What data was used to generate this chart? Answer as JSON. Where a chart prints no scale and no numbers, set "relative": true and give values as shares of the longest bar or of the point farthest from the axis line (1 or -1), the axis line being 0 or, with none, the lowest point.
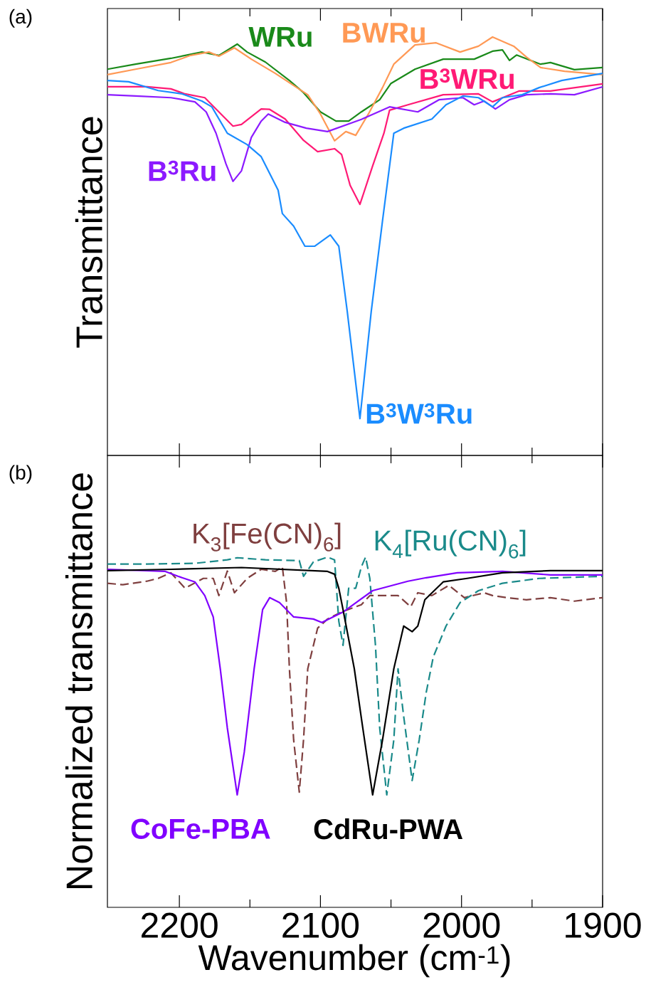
{
  "chart_data": [
    {
      "type": "line",
      "title": "(a)",
      "ylabel": "Transmittance",
      "relative": true,
      "tick_labels": false,
      "marker": "none",
      "xlim": [
        2251,
        1900
      ],
      "xticks": [
        2200,
        {
          "value": 2150,
          "label": null
        },
        2100,
        {
          "value": 2050,
          "label": null
        },
        2000,
        {
          "value": 1950,
          "label": null
        },
        1900
      ],
      "series": [
        {
          "name": "WRu",
          "color": "#1a8a1a",
          "x": [
            2251,
            2231,
            2206,
            2184,
            2172,
            2159,
            2152,
            2139,
            2122,
            2112,
            2100,
            2089,
            2080,
            2071,
            2058,
            2050,
            2033,
            2013,
            1991,
            1978,
            1971,
            1966,
            1961,
            1944,
            1937,
            1920,
            1900
          ],
          "values": [
            0.923,
            0.935,
            0.949,
            0.964,
            0.956,
            0.983,
            0.964,
            0.94,
            0.896,
            0.867,
            0.821,
            0.799,
            0.799,
            0.821,
            0.85,
            0.889,
            0.923,
            0.947,
            0.947,
            0.966,
            0.969,
            0.944,
            0.957,
            0.935,
            0.939,
            0.922,
            0.927
          ]
        },
        {
          "name": "BWRu",
          "color": "#ff9955",
          "x": [
            2251,
            2231,
            2206,
            2192,
            2179,
            2172,
            2161,
            2149,
            2132,
            2119,
            2109,
            2100,
            2090,
            2082,
            2075,
            2066,
            2056,
            2048,
            2033,
            2018,
            2001,
            1988,
            1978,
            1963,
            1954,
            1944,
            1927,
            1900
          ],
          "values": [
            0.91,
            0.923,
            0.939,
            0.956,
            0.964,
            0.954,
            0.974,
            0.947,
            0.913,
            0.884,
            0.862,
            0.816,
            0.752,
            0.774,
            0.765,
            0.816,
            0.879,
            0.935,
            0.981,
            0.986,
            0.964,
            0.978,
            1.0,
            0.978,
            0.952,
            0.927,
            0.918,
            0.91
          ]
        },
        {
          "name": "B$^{3}$WRu",
          "color": "#ff1a75",
          "x": [
            2251,
            2223,
            2206,
            2196,
            2182,
            2172,
            2162,
            2156,
            2142,
            2136,
            2125,
            2112,
            2102,
            2090,
            2085,
            2079,
            2072,
            2063,
            2055,
            2051,
            2038,
            2013,
            1988,
            1978,
            1959,
            1937,
            1900
          ],
          "values": [
            0.881,
            0.881,
            0.876,
            0.864,
            0.855,
            0.821,
            0.787,
            0.791,
            0.828,
            0.827,
            0.804,
            0.753,
            0.726,
            0.733,
            0.719,
            0.646,
            0.6,
            0.692,
            0.77,
            0.825,
            0.838,
            0.862,
            0.864,
            0.845,
            0.871,
            0.871,
            0.888
          ]
        },
        {
          "name": "B$^{3}$Ru",
          "color": "#8c1aff",
          "x": [
            2251,
            2231,
            2206,
            2189,
            2181,
            2174,
            2167,
            2162,
            2156,
            2149,
            2142,
            2137,
            2125,
            2110,
            2095,
            2071,
            2051,
            2031,
            2016,
            1999,
            1991,
            1984,
            1976,
            1966,
            1954,
            1937,
            1920,
            1900
          ],
          "values": [
            0.862,
            0.859,
            0.855,
            0.845,
            0.821,
            0.77,
            0.697,
            0.655,
            0.68,
            0.76,
            0.799,
            0.816,
            0.796,
            0.782,
            0.774,
            0.803,
            0.833,
            0.821,
            0.85,
            0.855,
            0.838,
            0.847,
            0.828,
            0.85,
            0.862,
            0.864,
            0.862,
            0.881
          ]
        },
        {
          "name": "B$^{3}$W$^{3}$Ru",
          "color": "#1a8cff",
          "x": [
            2251,
            2236,
            2215,
            2198,
            2184,
            2177,
            2166,
            2152,
            2142,
            2130,
            2127,
            2119,
            2111,
            2104,
            2093,
            2087,
            2081,
            2072,
            2064,
            2056,
            2048,
            2041,
            2021,
            2011,
            1999,
            1988,
            1978,
            1971,
            1957,
            1945,
            1929,
            1900
          ],
          "values": [
            0.896,
            0.893,
            0.872,
            0.864,
            0.847,
            0.833,
            0.77,
            0.743,
            0.714,
            0.634,
            0.578,
            0.548,
            0.5,
            0.5,
            0.527,
            0.5,
            0.344,
            0.088,
            0.344,
            0.561,
            0.77,
            0.782,
            0.804,
            0.838,
            0.859,
            0.855,
            0.833,
            0.855,
            0.862,
            0.879,
            0.896,
            0.913
          ]
        }
      ]
    },
    {
      "type": "line",
      "title": "(b)",
      "ylabel": "Normalized transmittance",
      "xlabel": "Wavenumber (cm$^{-1}$)",
      "relative": true,
      "tick_labels": "x",
      "marker": "none",
      "xlim": [
        2251,
        1900
      ],
      "xticks": [
        2200,
        {
          "value": 2150,
          "label": null
        },
        2100,
        {
          "value": 2050,
          "label": null
        },
        2000,
        {
          "value": 1950,
          "label": null
        },
        1900
      ],
      "series": [
        {
          "name": "K$_{3}$[Fe(CN)$_{6}$]",
          "color": "#7f3f3f",
          "line_style": "dashed",
          "x": [
            2251,
            2240,
            2223,
            2215,
            2206,
            2196,
            2183,
            2176,
            2172,
            2166,
            2161,
            2152,
            2142,
            2132,
            2127,
            2124,
            2122,
            2119,
            2115,
            2112,
            2109,
            2102,
            2095,
            2085,
            2071,
            2065,
            2055,
            2045,
            2036,
            2031,
            2021,
            2009,
            1998,
            1984,
            1978,
            1968,
            1954,
            1937,
            1920,
            1900
          ],
          "values": [
            0.925,
            0.921,
            0.931,
            0.939,
            0.955,
            0.911,
            0.939,
            0.939,
            0.89,
            0.96,
            0.898,
            0.939,
            0.965,
            0.959,
            0.972,
            0.87,
            0.681,
            0.478,
            0.329,
            0.478,
            0.681,
            0.797,
            0.823,
            0.843,
            0.864,
            0.89,
            0.89,
            0.89,
            0.858,
            0.898,
            0.89,
            0.919,
            0.884,
            0.898,
            0.89,
            0.884,
            0.878,
            0.884,
            0.874,
            0.884
          ]
        },
        {
          "name": "K$_{4}$[Ru(CN)$_{6}$]",
          "color": "#1a8a8a",
          "line_style": "dashed",
          "x": [
            2251,
            2223,
            2189,
            2166,
            2159,
            2139,
            2115,
            2112,
            2105,
            2095,
            2090,
            2087,
            2084,
            2080,
            2075,
            2071,
            2068,
            2065,
            2061,
            2058,
            2053,
            2048,
            2045,
            2041,
            2035,
            2030,
            2025,
            2020,
            2011,
            2001,
            1988,
            1971,
            1945,
            1900
          ],
          "values": [
            0.98,
            0.98,
            0.982,
            0.992,
            0.998,
            0.992,
            0.99,
            0.945,
            0.986,
            1.0,
            0.992,
            0.817,
            0.748,
            0.911,
            0.911,
            0.972,
            1.0,
            0.939,
            0.748,
            0.512,
            0.321,
            0.478,
            0.681,
            0.545,
            0.362,
            0.478,
            0.614,
            0.715,
            0.803,
            0.87,
            0.904,
            0.925,
            0.939,
            0.945
          ]
        },
        {
          "name": "CoFe-PBA",
          "color": "#8000ff",
          "x": [
            2251,
            2210,
            2201,
            2189,
            2182,
            2176,
            2171,
            2166,
            2159,
            2154,
            2147,
            2141,
            2136,
            2129,
            2119,
            2105,
            2099,
            2084,
            2063,
            2038,
            2025,
            2003,
            1971,
            1937,
            1900
          ],
          "values": [
            0.965,
            0.959,
            0.945,
            0.929,
            0.89,
            0.829,
            0.681,
            0.512,
            0.321,
            0.443,
            0.681,
            0.85,
            0.884,
            0.87,
            0.829,
            0.823,
            0.813,
            0.843,
            0.904,
            0.931,
            0.941,
            0.955,
            0.959,
            0.949,
            0.949
          ]
        },
        {
          "name": "CdRu-PWA",
          "color": "#000000",
          "x": [
            2251,
            2206,
            2156,
            2095,
            2090,
            2087,
            2084,
            2076,
            2070,
            2063,
            2056,
            2048,
            2041,
            2035,
            2031,
            2026,
            2013,
            1996,
            1971,
            1937,
            1900
          ],
          "values": [
            0.961,
            0.965,
            0.97,
            0.959,
            0.951,
            0.911,
            0.85,
            0.681,
            0.512,
            0.321,
            0.478,
            0.681,
            0.803,
            0.787,
            0.803,
            0.878,
            0.929,
            0.939,
            0.955,
            0.961,
            0.961
          ]
        }
      ]
    }
  ]
}
